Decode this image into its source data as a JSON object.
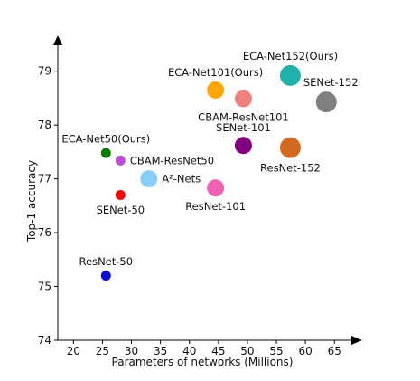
{
  "chart_data": {
    "type": "scatter",
    "title": "",
    "xlabel": "Parameters of networks (Millions)",
    "ylabel": "Top-1 accuracy",
    "xlim": [
      18,
      68
    ],
    "ylim": [
      74,
      79.6
    ],
    "xticks": [
      20,
      25,
      30,
      35,
      40,
      45,
      50,
      55,
      60,
      65
    ],
    "yticks": [
      74,
      75,
      76,
      77,
      78,
      79
    ],
    "grid": false,
    "legend": "none",
    "points": [
      {
        "label": "ResNet-50",
        "x": 25.6,
        "y": 75.2,
        "color": "#0b0bd6",
        "size": "small",
        "label_position": "above"
      },
      {
        "label": "SENet-50",
        "x": 28.1,
        "y": 76.7,
        "color": "#ff0000",
        "size": "small",
        "label_position": "below"
      },
      {
        "label": "ECA-Net50(Ours)",
        "x": 25.6,
        "y": 77.48,
        "color": "#087a08",
        "size": "small",
        "label_position": "above"
      },
      {
        "label": "CBAM-ResNet50",
        "x": 28.1,
        "y": 77.34,
        "color": "#bd4fd6",
        "size": "small",
        "label_position": "right"
      },
      {
        "label": "A²-Nets",
        "x": 33.0,
        "y": 77.0,
        "color": "#87cefa",
        "size": "medium",
        "label_position": "right"
      },
      {
        "label": "ResNet-101",
        "x": 44.5,
        "y": 76.83,
        "color": "#f062b4",
        "size": "medium",
        "label_position": "below"
      },
      {
        "label": "SENet-101",
        "x": 49.3,
        "y": 77.62,
        "color": "#800080",
        "size": "medium",
        "label_position": "above"
      },
      {
        "label": "ECA-Net101(Ours)",
        "x": 44.5,
        "y": 78.65,
        "color": "#ffa500",
        "size": "medium",
        "label_position": "above"
      },
      {
        "label": "CBAM-ResNet101",
        "x": 49.3,
        "y": 78.49,
        "color": "#f08080",
        "size": "medium",
        "label_position": "below"
      },
      {
        "label": "ResNet-152",
        "x": 57.4,
        "y": 77.58,
        "color": "#d2691e",
        "size": "large",
        "label_position": "below"
      },
      {
        "label": "ECA-Net152(Ours)",
        "x": 57.4,
        "y": 78.92,
        "color": "#20b2aa",
        "size": "large",
        "label_position": "above"
      },
      {
        "label": "SENet-152",
        "x": 63.6,
        "y": 78.43,
        "color": "#808080",
        "size": "large",
        "label_position": "above-right"
      }
    ]
  }
}
